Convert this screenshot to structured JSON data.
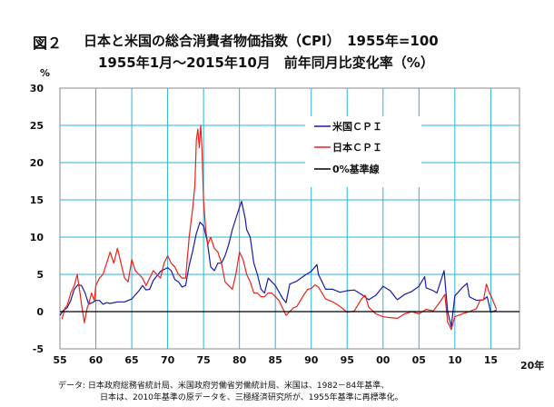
{
  "figure": {
    "label": "図２",
    "title_line1": "日本と米国の総合消費者物価指数（CPI）　1955年=100",
    "title_line2": "1955年1月～2015年10月　前年同月比変化率（%）",
    "source_line1": "データ:  日本政府総務省統計局、米国政府労働省労働統計局、米国は、1982－84年基準、",
    "source_line2": "日本は、2010年基準の原データを、三極経済研究所が、1955年基準に再標準化。"
  },
  "chart_data": {
    "type": "line",
    "title": "日本と米国の総合消費者物価指数（CPI）　1955年=100",
    "subtitle": "1955年1月～2015年10月　前年同月比変化率（%）",
    "ylabel": "%",
    "xlabel": "",
    "x_unit_label": "20年",
    "xlim": [
      1955,
      2019
    ],
    "ylim": [
      -5,
      30
    ],
    "x_ticks": [
      1955,
      1960,
      1965,
      1970,
      1975,
      1980,
      1985,
      1990,
      1995,
      2000,
      2005,
      2010,
      2015
    ],
    "x_tick_labels": [
      "55",
      "60",
      "65",
      "70",
      "75",
      "80",
      "85",
      "90",
      "95",
      "00",
      "05",
      "10",
      "15"
    ],
    "y_ticks": [
      -5,
      0,
      5,
      10,
      15,
      20,
      25,
      30
    ],
    "grid": true,
    "legend_position": "upper-right",
    "series": [
      {
        "name": "米国ＣＰＩ",
        "color": "#1a1aa8",
        "x": [
          1955.0,
          1955.5,
          1956.0,
          1956.5,
          1957.0,
          1957.5,
          1958.0,
          1958.5,
          1959.0,
          1959.5,
          1960.0,
          1960.5,
          1961.0,
          1961.5,
          1962.0,
          1963.0,
          1964.0,
          1965.0,
          1966.0,
          1966.5,
          1967.0,
          1967.5,
          1968.0,
          1969.0,
          1970.0,
          1970.5,
          1971.0,
          1971.5,
          1972.0,
          1972.5,
          1973.0,
          1973.5,
          1974.0,
          1974.5,
          1975.0,
          1975.5,
          1976.0,
          1976.5,
          1977.0,
          1977.5,
          1978.0,
          1978.5,
          1979.0,
          1979.5,
          1980.0,
          1980.3,
          1980.8,
          1981.0,
          1981.5,
          1982.0,
          1982.5,
          1983.0,
          1983.5,
          1984.0,
          1985.0,
          1986.0,
          1986.5,
          1987.0,
          1988.0,
          1989.0,
          1990.0,
          1990.8,
          1991.0,
          1991.5,
          1992.0,
          1993.0,
          1994.0,
          1995.0,
          1996.0,
          1997.0,
          1998.0,
          1999.0,
          2000.0,
          2001.0,
          2001.8,
          2002.0,
          2003.0,
          2004.0,
          2005.0,
          2005.8,
          2006.0,
          2007.0,
          2007.5,
          2008.0,
          2008.5,
          2009.0,
          2009.5,
          2010.0,
          2011.0,
          2011.7,
          2012.0,
          2013.0,
          2014.0,
          2014.5,
          2015.0,
          2015.8
        ],
        "y": [
          -0.5,
          0.2,
          0.5,
          1.5,
          3.0,
          3.6,
          3.5,
          2.5,
          1.0,
          1.2,
          1.5,
          1.5,
          1.0,
          1.2,
          1.1,
          1.3,
          1.3,
          1.7,
          2.8,
          3.5,
          2.9,
          3.0,
          4.2,
          5.4,
          5.9,
          5.5,
          4.3,
          4.0,
          3.3,
          3.5,
          6.2,
          8.2,
          10.5,
          12.0,
          11.5,
          9.5,
          6.0,
          5.5,
          6.5,
          6.5,
          7.5,
          9.0,
          11.0,
          12.5,
          14.0,
          14.8,
          12.5,
          11.0,
          10.0,
          6.5,
          5.0,
          3.0,
          2.5,
          4.5,
          3.5,
          1.8,
          1.2,
          3.7,
          4.1,
          4.8,
          5.4,
          6.3,
          5.0,
          4.0,
          3.0,
          3.0,
          2.6,
          2.8,
          2.9,
          2.3,
          1.6,
          2.2,
          3.4,
          2.8,
          1.8,
          1.6,
          2.3,
          2.7,
          3.4,
          4.7,
          3.2,
          2.8,
          2.5,
          4.0,
          5.5,
          0.0,
          -2.0,
          2.1,
          3.2,
          3.8,
          2.0,
          1.5,
          1.6,
          2.0,
          -0.1,
          0.2
        ]
      },
      {
        "name": "日本ＣＰＩ",
        "color": "#e8221c",
        "x": [
          1955.3,
          1955.7,
          1956.0,
          1956.5,
          1957.0,
          1957.4,
          1957.8,
          1958.0,
          1958.4,
          1958.8,
          1959.0,
          1959.4,
          1959.8,
          1960.0,
          1960.5,
          1961.0,
          1961.5,
          1962.0,
          1962.5,
          1963.0,
          1963.5,
          1964.0,
          1964.5,
          1965.0,
          1965.5,
          1966.0,
          1966.5,
          1967.0,
          1967.5,
          1968.0,
          1968.5,
          1969.0,
          1969.5,
          1970.0,
          1970.5,
          1971.0,
          1971.5,
          1972.0,
          1972.5,
          1973.0,
          1973.5,
          1973.8,
          1974.0,
          1974.2,
          1974.4,
          1974.6,
          1974.8,
          1975.0,
          1975.3,
          1975.6,
          1976.0,
          1976.5,
          1977.0,
          1977.5,
          1978.0,
          1978.5,
          1979.0,
          1979.5,
          1980.0,
          1980.5,
          1981.0,
          1981.5,
          1982.0,
          1982.5,
          1983.0,
          1983.5,
          1984.0,
          1984.5,
          1985.0,
          1985.5,
          1986.0,
          1986.5,
          1987.0,
          1987.5,
          1988.0,
          1989.0,
          1989.5,
          1990.0,
          1990.5,
          1991.0,
          1992.0,
          1993.0,
          1994.0,
          1995.0,
          1996.0,
          1997.0,
          1997.5,
          1998.0,
          1999.0,
          2000.0,
          2001.0,
          2002.0,
          2003.0,
          2004.0,
          2005.0,
          2006.0,
          2007.0,
          2008.0,
          2008.6,
          2009.0,
          2009.5,
          2010.0,
          2011.0,
          2012.0,
          2013.0,
          2013.5,
          2014.0,
          2014.4,
          2014.8,
          2015.0,
          2015.8
        ],
        "y": [
          -1.0,
          0.5,
          0.8,
          2.5,
          3.5,
          5.0,
          2.5,
          1.0,
          -1.5,
          0.5,
          1.0,
          2.5,
          1.5,
          3.5,
          4.5,
          5.0,
          6.5,
          8.0,
          6.5,
          8.5,
          6.5,
          4.5,
          4.0,
          7.0,
          5.5,
          5.0,
          4.5,
          3.5,
          4.5,
          5.5,
          5.0,
          4.5,
          6.5,
          7.5,
          6.5,
          6.0,
          5.0,
          4.5,
          4.5,
          10.0,
          14.0,
          17.0,
          23.0,
          24.5,
          22.0,
          25.0,
          21.5,
          15.0,
          11.0,
          9.0,
          10.0,
          8.5,
          8.0,
          6.5,
          4.0,
          3.5,
          3.0,
          5.0,
          8.0,
          7.0,
          5.0,
          4.0,
          2.5,
          2.5,
          2.0,
          2.0,
          2.5,
          2.5,
          2.0,
          1.5,
          0.5,
          -0.5,
          0.0,
          0.5,
          0.7,
          2.3,
          3.0,
          3.1,
          3.6,
          3.3,
          1.7,
          1.3,
          0.7,
          -0.1,
          0.1,
          1.7,
          2.2,
          0.6,
          -0.3,
          -0.7,
          -0.8,
          -0.9,
          -0.3,
          0.0,
          -0.3,
          0.3,
          0.1,
          1.4,
          2.3,
          -1.4,
          -2.4,
          -0.7,
          -0.3,
          0.0,
          0.4,
          1.5,
          1.6,
          3.7,
          2.5,
          2.2,
          0.3
        ]
      },
      {
        "name": "0%基準線",
        "color": "#000000",
        "x": [
          1955,
          2019
        ],
        "y": [
          0,
          0
        ]
      }
    ]
  }
}
